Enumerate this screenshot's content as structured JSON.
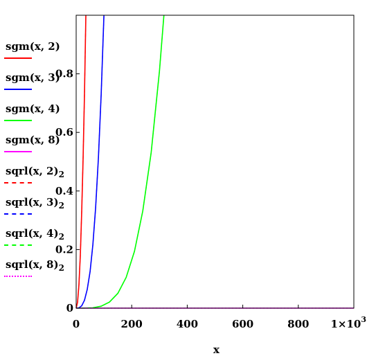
{
  "chart_data": {
    "type": "line",
    "xlabel": "x",
    "ylabel": "",
    "xlim": [
      0,
      1000
    ],
    "ylim": [
      0,
      1
    ],
    "x_ticks": [
      "0",
      "200",
      "400",
      "600",
      "800",
      "1×10"
    ],
    "x_tick_exponent": "3",
    "y_ticks": [
      "0",
      "0.2",
      "0.4",
      "0.6",
      "0.8"
    ],
    "series": [
      {
        "name": "sgm(x, 2)",
        "color": "#ff0000",
        "style": "solid",
        "x": [
          0,
          5,
          10,
          15,
          20,
          25,
          30,
          35
        ],
        "y": [
          0,
          0.02,
          0.08,
          0.18,
          0.33,
          0.51,
          0.73,
          1.0
        ]
      },
      {
        "name": "sgm(x, 3)",
        "color": "#0000ff",
        "style": "solid",
        "x": [
          0,
          10,
          20,
          30,
          40,
          50,
          60,
          70,
          80,
          90,
          100
        ],
        "y": [
          0,
          0.001,
          0.008,
          0.027,
          0.064,
          0.125,
          0.216,
          0.343,
          0.512,
          0.729,
          1.0
        ]
      },
      {
        "name": "sgm(x, 4)",
        "color": "#00ff00",
        "style": "solid",
        "x": [
          0,
          30,
          60,
          90,
          120,
          150,
          180,
          210,
          240,
          270,
          300,
          316
        ],
        "y": [
          0,
          0.0001,
          0.0013,
          0.0066,
          0.0207,
          0.0506,
          0.105,
          0.194,
          0.332,
          0.531,
          0.81,
          1.0
        ]
      },
      {
        "name": "sgm(x, 8)",
        "color": "#ff00ff",
        "style": "solid",
        "x": [
          0,
          200,
          400,
          600,
          800,
          1000
        ],
        "y": [
          0,
          0,
          0,
          0,
          0,
          0
        ]
      },
      {
        "name": "sqrl(x, 2)",
        "subscript": "2",
        "color": "#ff0000",
        "style": "dashed",
        "x": [
          0,
          5,
          10,
          15,
          20,
          25,
          30,
          35
        ],
        "y": [
          0,
          0.02,
          0.08,
          0.18,
          0.33,
          0.51,
          0.73,
          1.0
        ]
      },
      {
        "name": "sqrl(x, 3)",
        "subscript": "2",
        "color": "#0000ff",
        "style": "dashed",
        "x": [
          0,
          10,
          20,
          30,
          40,
          50,
          60,
          70,
          80,
          90,
          100
        ],
        "y": [
          0,
          0.001,
          0.008,
          0.027,
          0.064,
          0.125,
          0.216,
          0.343,
          0.512,
          0.729,
          1.0
        ]
      },
      {
        "name": "sqrl(x, 4)",
        "subscript": "2",
        "color": "#00ff00",
        "style": "dashed",
        "x": [
          0,
          30,
          60,
          90,
          120,
          150,
          180,
          210,
          240,
          270,
          300,
          316
        ],
        "y": [
          0,
          0.0001,
          0.0013,
          0.0066,
          0.0207,
          0.0506,
          0.105,
          0.194,
          0.332,
          0.531,
          0.81,
          1.0
        ]
      },
      {
        "name": "sqrl(x, 8)",
        "subscript": "2",
        "color": "#ff00ff",
        "style": "dotted",
        "x": [
          0,
          200,
          400,
          600,
          800,
          1000
        ],
        "y": [
          0,
          0,
          0,
          0,
          0,
          0
        ]
      }
    ]
  }
}
